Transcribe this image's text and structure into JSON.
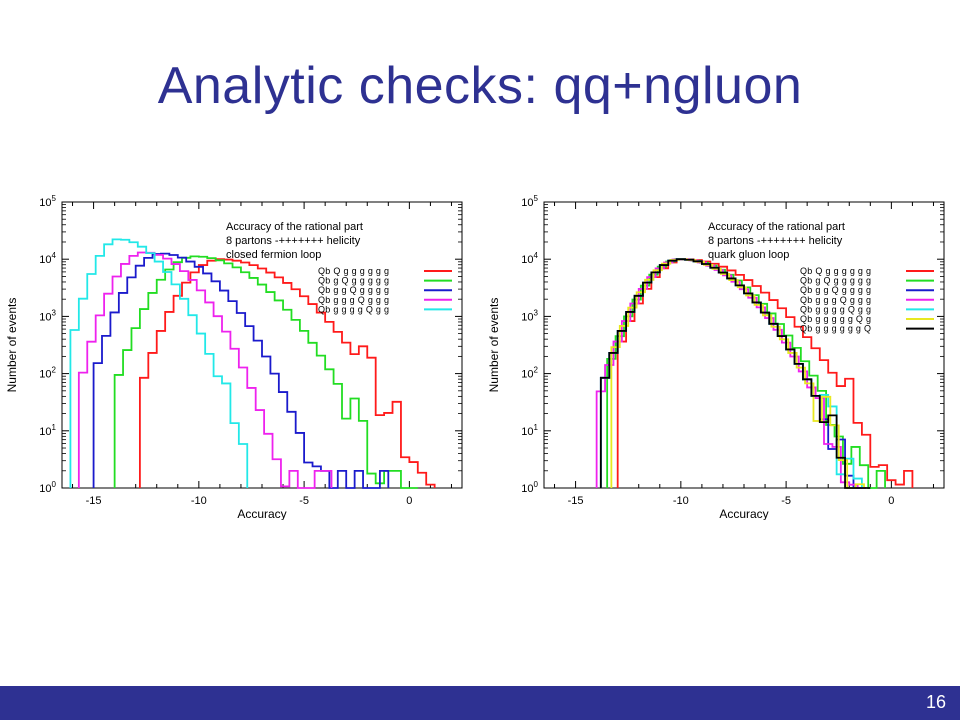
{
  "slide": {
    "title": "Analytic checks: qq+ngluon",
    "page_number": "16"
  },
  "colors": {
    "title": "#2e3192",
    "footer": "#2e3192",
    "series": [
      "#ff1a1a",
      "#22dd22",
      "#1a1acc",
      "#ee22ee",
      "#22e8e8",
      "#e8e820",
      "#000000"
    ]
  },
  "chart_data": [
    {
      "type": "histogram",
      "title_lines": [
        "Accuracy of the rational part",
        "8 partons -+++++++ helicity",
        "closed fermion loop"
      ],
      "xlabel": "Accuracy",
      "ylabel": "Number of events",
      "xlim": [
        -16.5,
        2.5
      ],
      "yscale": "log",
      "ylim_exp": [
        0,
        5
      ],
      "xticks": [
        -15,
        -10,
        -5,
        0
      ],
      "yticks": [
        "10^0",
        "10^1",
        "10^2",
        "10^3",
        "10^4",
        "10^5"
      ],
      "legend_position": "top-right",
      "series": [
        {
          "name": "Qb Q g g g g g g",
          "color": "#ff1a1a",
          "peak": -9.0,
          "sigma_left": 1.5,
          "sigma_right": 3.6,
          "peak_log": 4.0,
          "noise_start": -2.5,
          "end": 1.0,
          "min_x": -12.8
        },
        {
          "name": "Qb g Q g g g g g",
          "color": "#22dd22",
          "peak": -10.2,
          "sigma_left": 1.5,
          "sigma_right": 3.3,
          "peak_log": 4.05,
          "noise_start": -3.3,
          "end": 0.3,
          "min_x": -14.0
        },
        {
          "name": "Qb g g Q g g g g",
          "color": "#1a1acc",
          "peak": -11.8,
          "sigma_left": 1.3,
          "sigma_right": 2.7,
          "peak_log": 4.1,
          "noise_start": -4.8,
          "end": -1.0,
          "min_x": -15.0
        },
        {
          "name": "Qb g g g Q g g g",
          "color": "#ee22ee",
          "peak": -12.6,
          "sigma_left": 1.2,
          "sigma_right": 2.4,
          "peak_log": 4.12,
          "noise_start": -5.8,
          "end": -4.0,
          "min_x": -15.7
        },
        {
          "name": "Qb g g g g Q g g",
          "color": "#22e8e8",
          "peak": -13.8,
          "sigma_left": 1.0,
          "sigma_right": 2.2,
          "peak_log": 4.35,
          "noise_start": -9.0,
          "end": -7.8,
          "min_x": -16.1
        }
      ]
    },
    {
      "type": "histogram",
      "title_lines": [
        "Accuracy of the rational part",
        "8 partons -+++++++ helicity",
        "quark gluon loop"
      ],
      "xlabel": "Accuracy",
      "ylabel": "Number of events",
      "xlim": [
        -16.5,
        2.5
      ],
      "yscale": "log",
      "ylim_exp": [
        0,
        5
      ],
      "xticks": [
        -15,
        -10,
        -5,
        0
      ],
      "yticks": [
        "10^0",
        "10^1",
        "10^2",
        "10^3",
        "10^4",
        "10^5"
      ],
      "legend_position": "top-right",
      "series": [
        {
          "name": "Qb Q g g g g g g",
          "color": "#ff1a1a",
          "peak": -9.8,
          "sigma_left": 1.5,
          "sigma_right": 3.6,
          "peak_log": 4.0,
          "noise_start": -2.2,
          "end": 0.8,
          "min_x": -13.0
        },
        {
          "name": "Qb g Q g g g g g",
          "color": "#22dd22",
          "peak": -10.0,
          "sigma_left": 1.5,
          "sigma_right": 3.2,
          "peak_log": 4.0,
          "noise_start": -3.0,
          "end": -0.5,
          "min_x": -13.5
        },
        {
          "name": "Qb g g Q g g g g",
          "color": "#1a1acc",
          "peak": -10.0,
          "sigma_left": 1.5,
          "sigma_right": 3.0,
          "peak_log": 4.0,
          "noise_start": -3.5,
          "end": -1.5,
          "min_x": -13.8
        },
        {
          "name": "Qb g g g Q g g g",
          "color": "#ee22ee",
          "peak": -10.0,
          "sigma_left": 1.5,
          "sigma_right": 3.0,
          "peak_log": 4.0,
          "noise_start": -3.5,
          "end": -1.5,
          "min_x": -14.0
        },
        {
          "name": "Qb g g g g Q g g",
          "color": "#22e8e8",
          "peak": -10.0,
          "sigma_left": 1.5,
          "sigma_right": 3.0,
          "peak_log": 4.0,
          "noise_start": -3.5,
          "end": -1.5,
          "min_x": -13.8
        },
        {
          "name": "Qb g g g g g Q g",
          "color": "#e8e820",
          "peak": -10.0,
          "sigma_left": 1.5,
          "sigma_right": 3.0,
          "peak_log": 4.0,
          "noise_start": -3.5,
          "end": -1.5,
          "min_x": -13.3
        },
        {
          "name": "Qb g g g g g g Q",
          "color": "#000000",
          "peak": -10.0,
          "sigma_left": 1.5,
          "sigma_right": 3.0,
          "peak_log": 4.0,
          "noise_start": -3.5,
          "end": -1.2,
          "min_x": -13.8
        }
      ]
    }
  ]
}
